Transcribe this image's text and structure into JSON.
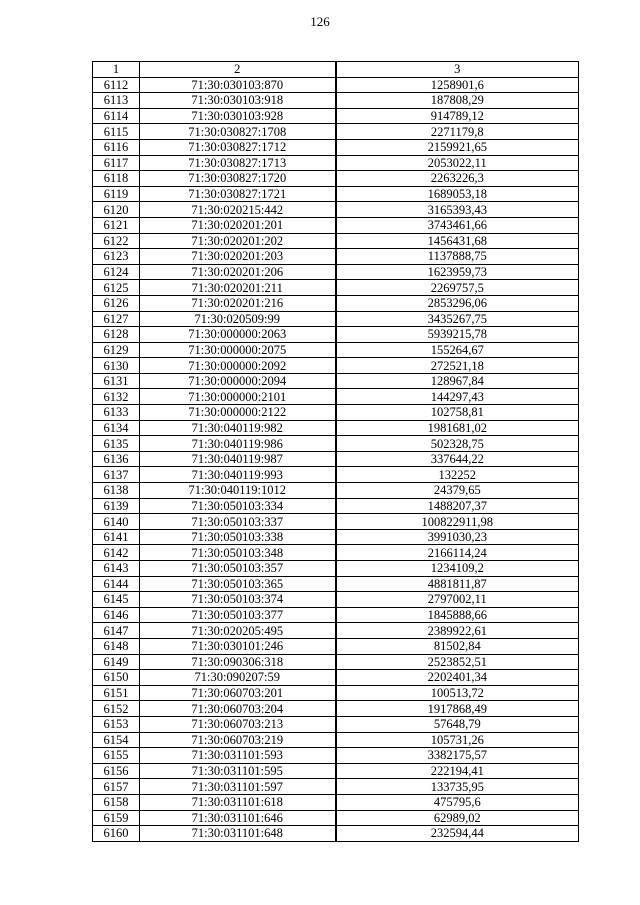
{
  "page_number": "126",
  "table": {
    "headers": [
      "1",
      "2",
      "3"
    ],
    "rows": [
      [
        "6112",
        "71:30:030103:870",
        "1258901,6"
      ],
      [
        "6113",
        "71:30:030103:918",
        "187808,29"
      ],
      [
        "6114",
        "71:30:030103:928",
        "914789,12"
      ],
      [
        "6115",
        "71:30:030827:1708",
        "2271179,8"
      ],
      [
        "6116",
        "71:30:030827:1712",
        "2159921,65"
      ],
      [
        "6117",
        "71:30:030827:1713",
        "2053022,11"
      ],
      [
        "6118",
        "71:30:030827:1720",
        "2263226,3"
      ],
      [
        "6119",
        "71:30:030827:1721",
        "1689053,18"
      ],
      [
        "6120",
        "71:30:020215:442",
        "3165393,43"
      ],
      [
        "6121",
        "71:30:020201:201",
        "3743461,66"
      ],
      [
        "6122",
        "71:30:020201:202",
        "1456431,68"
      ],
      [
        "6123",
        "71:30:020201:203",
        "1137888,75"
      ],
      [
        "6124",
        "71:30:020201:206",
        "1623959,73"
      ],
      [
        "6125",
        "71:30:020201:211",
        "2269757,5"
      ],
      [
        "6126",
        "71:30:020201:216",
        "2853296,06"
      ],
      [
        "6127",
        "71:30:020509:99",
        "3435267,75"
      ],
      [
        "6128",
        "71:30:000000:2063",
        "5939215,78"
      ],
      [
        "6129",
        "71:30:000000:2075",
        "155264,67"
      ],
      [
        "6130",
        "71:30:000000:2092",
        "272521,18"
      ],
      [
        "6131",
        "71:30:000000:2094",
        "128967,84"
      ],
      [
        "6132",
        "71:30:000000:2101",
        "144297,43"
      ],
      [
        "6133",
        "71:30:000000:2122",
        "102758,81"
      ],
      [
        "6134",
        "71:30:040119:982",
        "1981681,02"
      ],
      [
        "6135",
        "71:30:040119:986",
        "502328,75"
      ],
      [
        "6136",
        "71:30:040119:987",
        "337644,22"
      ],
      [
        "6137",
        "71:30:040119:993",
        "132252"
      ],
      [
        "6138",
        "71:30:040119:1012",
        "24379,65"
      ],
      [
        "6139",
        "71:30:050103:334",
        "1488207,37"
      ],
      [
        "6140",
        "71:30:050103:337",
        "100822911,98"
      ],
      [
        "6141",
        "71:30:050103:338",
        "3991030,23"
      ],
      [
        "6142",
        "71:30:050103:348",
        "2166114,24"
      ],
      [
        "6143",
        "71:30:050103:357",
        "1234109,2"
      ],
      [
        "6144",
        "71:30:050103:365",
        "4881811,87"
      ],
      [
        "6145",
        "71:30:050103:374",
        "2797002,11"
      ],
      [
        "6146",
        "71:30:050103:377",
        "1845888,66"
      ],
      [
        "6147",
        "71:30:020205:495",
        "2389922,61"
      ],
      [
        "6148",
        "71:30:030101:246",
        "81502,84"
      ],
      [
        "6149",
        "71:30:090306:318",
        "2523852,51"
      ],
      [
        "6150",
        "71:30:090207:59",
        "2202401,34"
      ],
      [
        "6151",
        "71:30:060703:201",
        "100513,72"
      ],
      [
        "6152",
        "71:30:060703:204",
        "1917868,49"
      ],
      [
        "6153",
        "71:30:060703:213",
        "57648,79"
      ],
      [
        "6154",
        "71:30:060703:219",
        "105731,26"
      ],
      [
        "6155",
        "71:30:031101:593",
        "3382175,57"
      ],
      [
        "6156",
        "71:30:031101:595",
        "222194,41"
      ],
      [
        "6157",
        "71:30:031101:597",
        "133735,95"
      ],
      [
        "6158",
        "71:30:031101:618",
        "475795,6"
      ],
      [
        "6159",
        "71:30:031101:646",
        "62989,02"
      ],
      [
        "6160",
        "71:30:031101:648",
        "232594,44"
      ]
    ]
  }
}
